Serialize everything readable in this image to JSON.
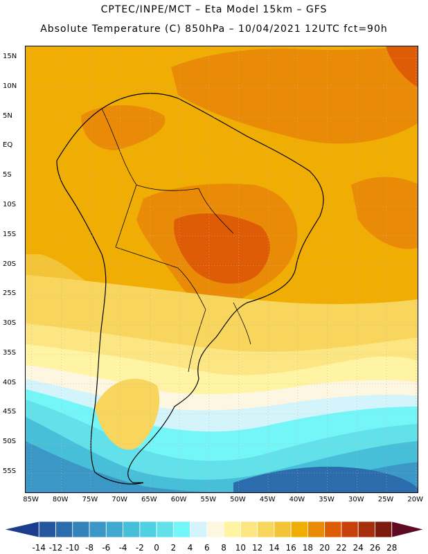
{
  "header": {
    "line1": "CPTEC/INPE/MCT –  Eta Model 15km – GFS",
    "line2": "Absolute Temperature (C) 850hPa – 10/04/2021 12UTC fct=90h"
  },
  "map": {
    "region": "South America",
    "variable": "Absolute Temperature (C) 850hPa",
    "lat_labels": [
      "15N",
      "10N",
      "5N",
      "EQ",
      "5S",
      "10S",
      "15S",
      "20S",
      "25S",
      "30S",
      "35S",
      "40S",
      "45S",
      "50S",
      "55S"
    ],
    "lat_values": [
      15,
      10,
      5,
      0,
      -5,
      -10,
      -15,
      -20,
      -25,
      -30,
      -35,
      -40,
      -45,
      -50,
      -55
    ],
    "lon_labels": [
      "85W",
      "80W",
      "75W",
      "70W",
      "65W",
      "60W",
      "55W",
      "50W",
      "45W",
      "40W",
      "35W",
      "30W",
      "25W",
      "20W"
    ],
    "lon_values": [
      -85,
      -80,
      -75,
      -70,
      -65,
      -60,
      -55,
      -50,
      -45,
      -40,
      -35,
      -30,
      -25,
      -20
    ],
    "lat_range": [
      -58.5,
      17
    ],
    "lon_range": [
      -86,
      -19.5
    ]
  },
  "legend": {
    "labels": [
      "-14",
      "-12",
      "-10",
      "-8",
      "-6",
      "-4",
      "-2",
      "0",
      "2",
      "4",
      "6",
      "8",
      "10",
      "12",
      "14",
      "16",
      "18",
      "20",
      "22",
      "24",
      "26",
      "28"
    ],
    "colors": [
      "#1c3d8c",
      "#25579f",
      "#2b6cad",
      "#3183ba",
      "#3a97c6",
      "#41a9cf",
      "#48bfd8",
      "#50d0e2",
      "#62e1ea",
      "#74f6f8",
      "#d3f4fb",
      "#fdf6e0",
      "#fef4a3",
      "#fce683",
      "#f8d55d",
      "#f3c338",
      "#f0ae05",
      "#ea8b08",
      "#de5c05",
      "#c8400c",
      "#a52f0d",
      "#7d1c0d",
      "#5e0a22"
    ]
  },
  "colors": {
    "border": "#000000",
    "grid": "#c8b496"
  }
}
